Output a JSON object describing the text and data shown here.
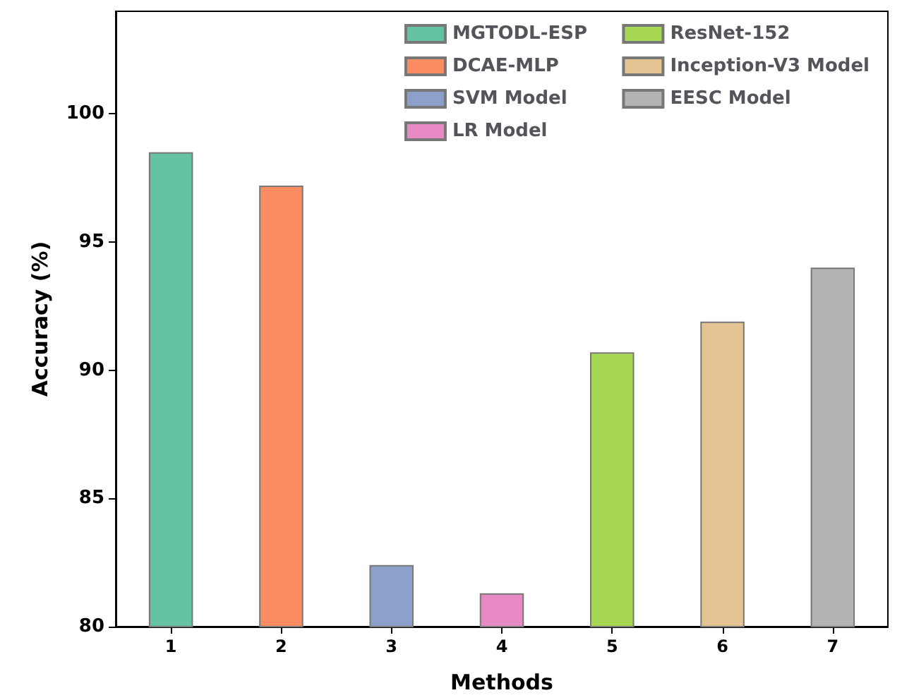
{
  "chart_data": {
    "type": "bar",
    "xlabel": "Methods",
    "ylabel": "Accuracy (%)",
    "categories": [
      "1",
      "2",
      "3",
      "4",
      "5",
      "6",
      "7"
    ],
    "series": [
      {
        "name": "MGTODL-ESP",
        "color": "#66c2a5",
        "values": [
          98.5,
          null,
          null,
          null,
          null,
          null,
          null
        ]
      },
      {
        "name": "DCAE-MLP",
        "color": "#fc8d62",
        "values": [
          null,
          97.2,
          null,
          null,
          null,
          null,
          null
        ]
      },
      {
        "name": "SVM Model",
        "color": "#8da0cb",
        "values": [
          null,
          null,
          82.4,
          null,
          null,
          null,
          null
        ]
      },
      {
        "name": "LR Model",
        "color": "#e78ac3",
        "values": [
          null,
          null,
          null,
          81.3,
          null,
          null,
          null
        ]
      },
      {
        "name": "ResNet-152",
        "color": "#a6d854",
        "values": [
          null,
          null,
          null,
          null,
          90.7,
          null,
          null
        ]
      },
      {
        "name": "Inception-V3 Model",
        "color": "#e5c494",
        "values": [
          null,
          null,
          null,
          null,
          null,
          91.9,
          null
        ]
      },
      {
        "name": "EESC Model",
        "color": "#b3b3b3",
        "values": [
          null,
          null,
          null,
          null,
          null,
          null,
          94.0
        ]
      }
    ],
    "ylim": [
      80,
      104
    ],
    "yticks": [
      80,
      85,
      90,
      95,
      100
    ],
    "grid": false,
    "legend": "top right"
  }
}
